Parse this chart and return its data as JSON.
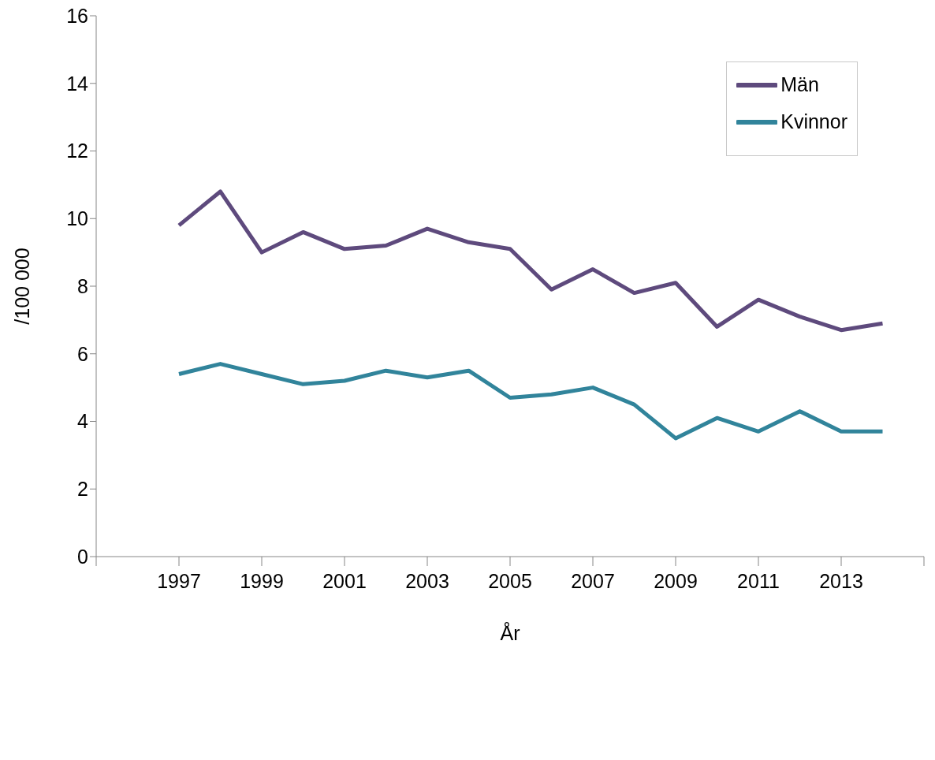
{
  "chart_data": {
    "type": "line",
    "xlabel": "År",
    "ylabel": "/100 000",
    "x": [
      1997,
      1998,
      1999,
      2000,
      2001,
      2002,
      2003,
      2004,
      2005,
      2006,
      2007,
      2008,
      2009,
      2010,
      2011,
      2012,
      2013,
      2014
    ],
    "series": [
      {
        "name": "Män",
        "color": "#5e4a7d",
        "values": [
          9.8,
          10.8,
          9.0,
          9.6,
          9.1,
          9.2,
          9.7,
          9.3,
          9.1,
          7.9,
          8.5,
          7.8,
          8.1,
          6.8,
          7.6,
          7.1,
          6.7,
          6.9
        ]
      },
      {
        "name": "Kvinnor",
        "color": "#31849b",
        "values": [
          5.4,
          5.7,
          5.4,
          5.1,
          5.2,
          5.5,
          5.3,
          5.5,
          4.7,
          4.8,
          5.0,
          4.5,
          3.5,
          4.1,
          3.7,
          4.3,
          3.7,
          3.7
        ]
      }
    ],
    "xlim": [
      1995,
      2015
    ],
    "xticks": [
      {
        "value": 1995,
        "label": null
      },
      1997,
      1999,
      2001,
      2003,
      2005,
      2007,
      2009,
      2011,
      2013,
      {
        "value": 2015,
        "label": null
      }
    ],
    "ylim": [
      0,
      16
    ],
    "yticks": [
      0,
      2,
      4,
      6,
      8,
      10,
      12,
      14,
      16
    ],
    "grid": false,
    "legend": "top right",
    "marker": "none",
    "line_style": "solid"
  }
}
